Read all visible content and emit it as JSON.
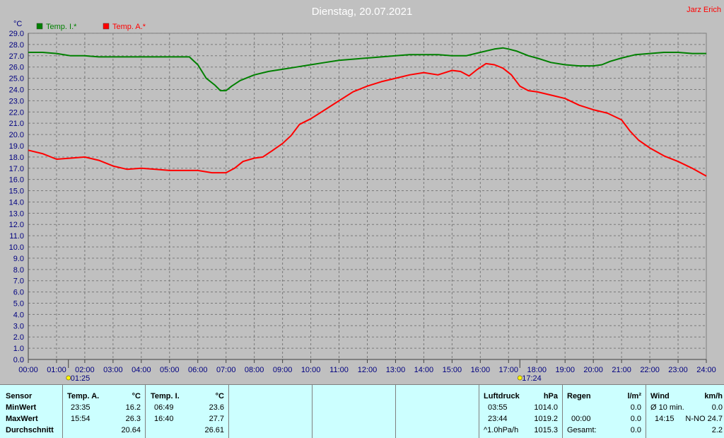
{
  "chart_data": {
    "type": "line",
    "title": "Dienstag, 20.07.2021",
    "author": "Jarz Erich",
    "ylabel": "°C",
    "ylim": [
      0,
      29
    ],
    "ytick_step": 1,
    "xlim": [
      0,
      24
    ],
    "x_ticks": [
      "00:00",
      "01:00",
      "02:00",
      "03:00",
      "04:00",
      "05:00",
      "06:00",
      "07:00",
      "08:00",
      "09:00",
      "10:00",
      "11:00",
      "12:00",
      "13:00",
      "14:00",
      "15:00",
      "16:00",
      "17:00",
      "18:00",
      "19:00",
      "20:00",
      "21:00",
      "22:00",
      "23:00",
      "24:00"
    ],
    "grid": true,
    "legend": "top-left",
    "markers": [
      {
        "label": "01:25",
        "x": 1.42,
        "icon": "sunrise-icon"
      },
      {
        "label": "17:24",
        "x": 17.4,
        "icon": "sunset-icon"
      }
    ],
    "series": [
      {
        "name": "Temp. I.*",
        "color": "#008000",
        "x": [
          0,
          0.5,
          1.0,
          1.5,
          2.0,
          2.5,
          3.0,
          4.0,
          5.0,
          5.7,
          6.0,
          6.3,
          6.6,
          6.8,
          7.0,
          7.2,
          7.5,
          8.0,
          8.5,
          9.0,
          9.5,
          10.0,
          10.5,
          11.0,
          11.5,
          12.0,
          12.5,
          13.0,
          13.5,
          14.0,
          14.5,
          15.0,
          15.5,
          16.0,
          16.5,
          16.8,
          17.0,
          17.3,
          17.7,
          18.0,
          18.5,
          19.0,
          19.5,
          20.0,
          20.3,
          20.6,
          21.0,
          21.5,
          22.0,
          22.5,
          23.0,
          23.5,
          24.0
        ],
        "y": [
          27.3,
          27.3,
          27.2,
          27.0,
          27.0,
          26.9,
          26.9,
          26.9,
          26.9,
          26.9,
          26.2,
          25.0,
          24.4,
          23.9,
          23.9,
          24.3,
          24.8,
          25.3,
          25.6,
          25.8,
          26.0,
          26.2,
          26.4,
          26.6,
          26.7,
          26.8,
          26.9,
          27.0,
          27.1,
          27.1,
          27.1,
          27.0,
          27.0,
          27.3,
          27.6,
          27.7,
          27.6,
          27.4,
          27.0,
          26.8,
          26.4,
          26.2,
          26.1,
          26.1,
          26.2,
          26.5,
          26.8,
          27.1,
          27.2,
          27.3,
          27.3,
          27.2,
          27.2
        ]
      },
      {
        "name": "Temp. A.*",
        "color": "#ff0000",
        "x": [
          0,
          0.5,
          1.0,
          1.5,
          2.0,
          2.5,
          3.0,
          3.5,
          4.0,
          4.5,
          5.0,
          5.5,
          6.0,
          6.5,
          7.0,
          7.3,
          7.6,
          8.0,
          8.3,
          8.6,
          9.0,
          9.3,
          9.6,
          10.0,
          10.5,
          11.0,
          11.5,
          12.0,
          12.5,
          13.0,
          13.5,
          14.0,
          14.5,
          15.0,
          15.3,
          15.6,
          15.9,
          16.2,
          16.5,
          16.8,
          17.1,
          17.4,
          17.7,
          18.0,
          18.5,
          19.0,
          19.5,
          20.0,
          20.5,
          21.0,
          21.3,
          21.6,
          22.0,
          22.5,
          23.0,
          23.5,
          24.0
        ],
        "y": [
          18.6,
          18.3,
          17.8,
          17.9,
          18.0,
          17.7,
          17.2,
          16.9,
          17.0,
          16.9,
          16.8,
          16.8,
          16.8,
          16.6,
          16.6,
          17.0,
          17.6,
          17.9,
          18.0,
          18.5,
          19.2,
          19.9,
          20.9,
          21.4,
          22.2,
          23.0,
          23.8,
          24.3,
          24.7,
          25.0,
          25.3,
          25.5,
          25.3,
          25.7,
          25.6,
          25.2,
          25.8,
          26.3,
          26.2,
          25.9,
          25.3,
          24.3,
          23.9,
          23.8,
          23.5,
          23.2,
          22.6,
          22.2,
          21.9,
          21.3,
          20.3,
          19.5,
          18.8,
          18.1,
          17.6,
          17.0,
          16.3
        ]
      }
    ]
  },
  "panel": {
    "sensor": {
      "header": "Sensor",
      "rows": [
        "MinWert",
        "MaxWert",
        "Durchschnitt"
      ]
    },
    "temp_a": {
      "header": "Temp. A.",
      "unit": "°C",
      "min_time": "23:35",
      "min_val": "16.2",
      "max_time": "15:54",
      "max_val": "26.3",
      "avg": "20.64"
    },
    "temp_i": {
      "header": "Temp. I.",
      "unit": "°C",
      "min_time": "06:49",
      "min_val": "23.6",
      "max_time": "16:40",
      "max_val": "27.7",
      "avg": "26.61"
    },
    "pressure": {
      "header": "Luftdruck",
      "unit": "hPa",
      "min_time": "03:55",
      "min_val": "1014.0",
      "max_time": "23:44",
      "max_val": "1019.2",
      "trend_label": "^1.0hPa/h",
      "trend_val": "1015.3"
    },
    "rain": {
      "header": "Regen",
      "unit": "l/m²",
      "r1_val": "0.0",
      "r2_time": "00:00",
      "r2_val": "0.0",
      "r3_label": "Gesamt:",
      "r3_val": "0.0"
    },
    "wind": {
      "header": "Wind",
      "unit": "km/h",
      "r1_label": "Ø 10 min.",
      "r1_val": "0.0",
      "r2_time": "14:15",
      "r2_val": "N-NO 24.7",
      "r3_val": "2.2"
    }
  }
}
